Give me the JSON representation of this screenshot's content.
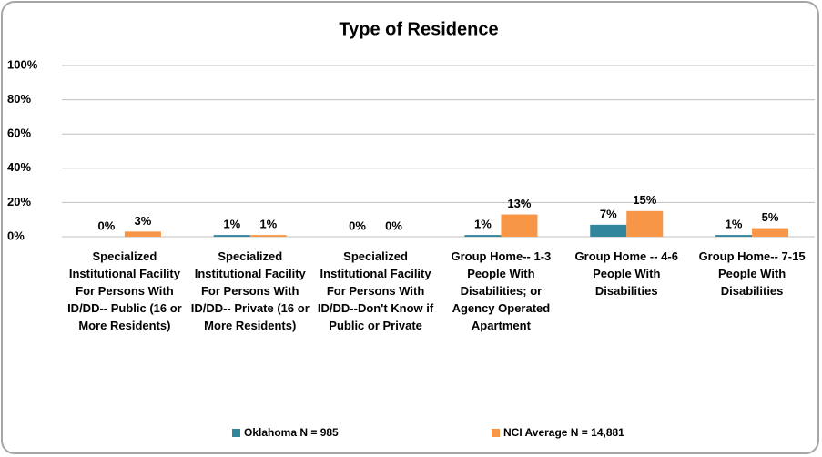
{
  "chart_data": {
    "type": "bar",
    "title": "Type of Residence",
    "categories": [
      "Specialized Institutional Facility For Persons With ID/DD-- Public (16 or More Residents)",
      "Specialized Institutional Facility For Persons With ID/DD-- Private (16 or More Residents)",
      "Specialized Institutional Facility For Persons With ID/DD--Don't Know if Public or Private",
      "Group Home-- 1-3 People With Disabilities; or Agency Operated Apartment",
      "Group Home -- 4-6 People With Disabilities",
      "Group Home-- 7-15 People With Disabilities"
    ],
    "series": [
      {
        "name": "Oklahoma N = 985",
        "color": "#31859c",
        "values": [
          0,
          1,
          0,
          1,
          7,
          1
        ],
        "value_labels": [
          "0%",
          "1%",
          "0%",
          "1%",
          "7%",
          "1%"
        ]
      },
      {
        "name": "NCI Average N = 14,881",
        "color": "#f79646",
        "values": [
          3,
          1,
          0,
          13,
          15,
          5
        ],
        "value_labels": [
          "3%",
          "1%",
          "0%",
          "13%",
          "15%",
          "5%"
        ]
      }
    ],
    "ylim": [
      0,
      100
    ],
    "yticks": [
      {
        "value": 0,
        "label": "0%"
      },
      {
        "value": 20,
        "label": "20%"
      },
      {
        "value": 40,
        "label": "40%"
      },
      {
        "value": 60,
        "label": "60%"
      },
      {
        "value": 80,
        "label": "80%"
      },
      {
        "value": 100,
        "label": "100%"
      }
    ],
    "grid": true,
    "legend": "bottom"
  }
}
